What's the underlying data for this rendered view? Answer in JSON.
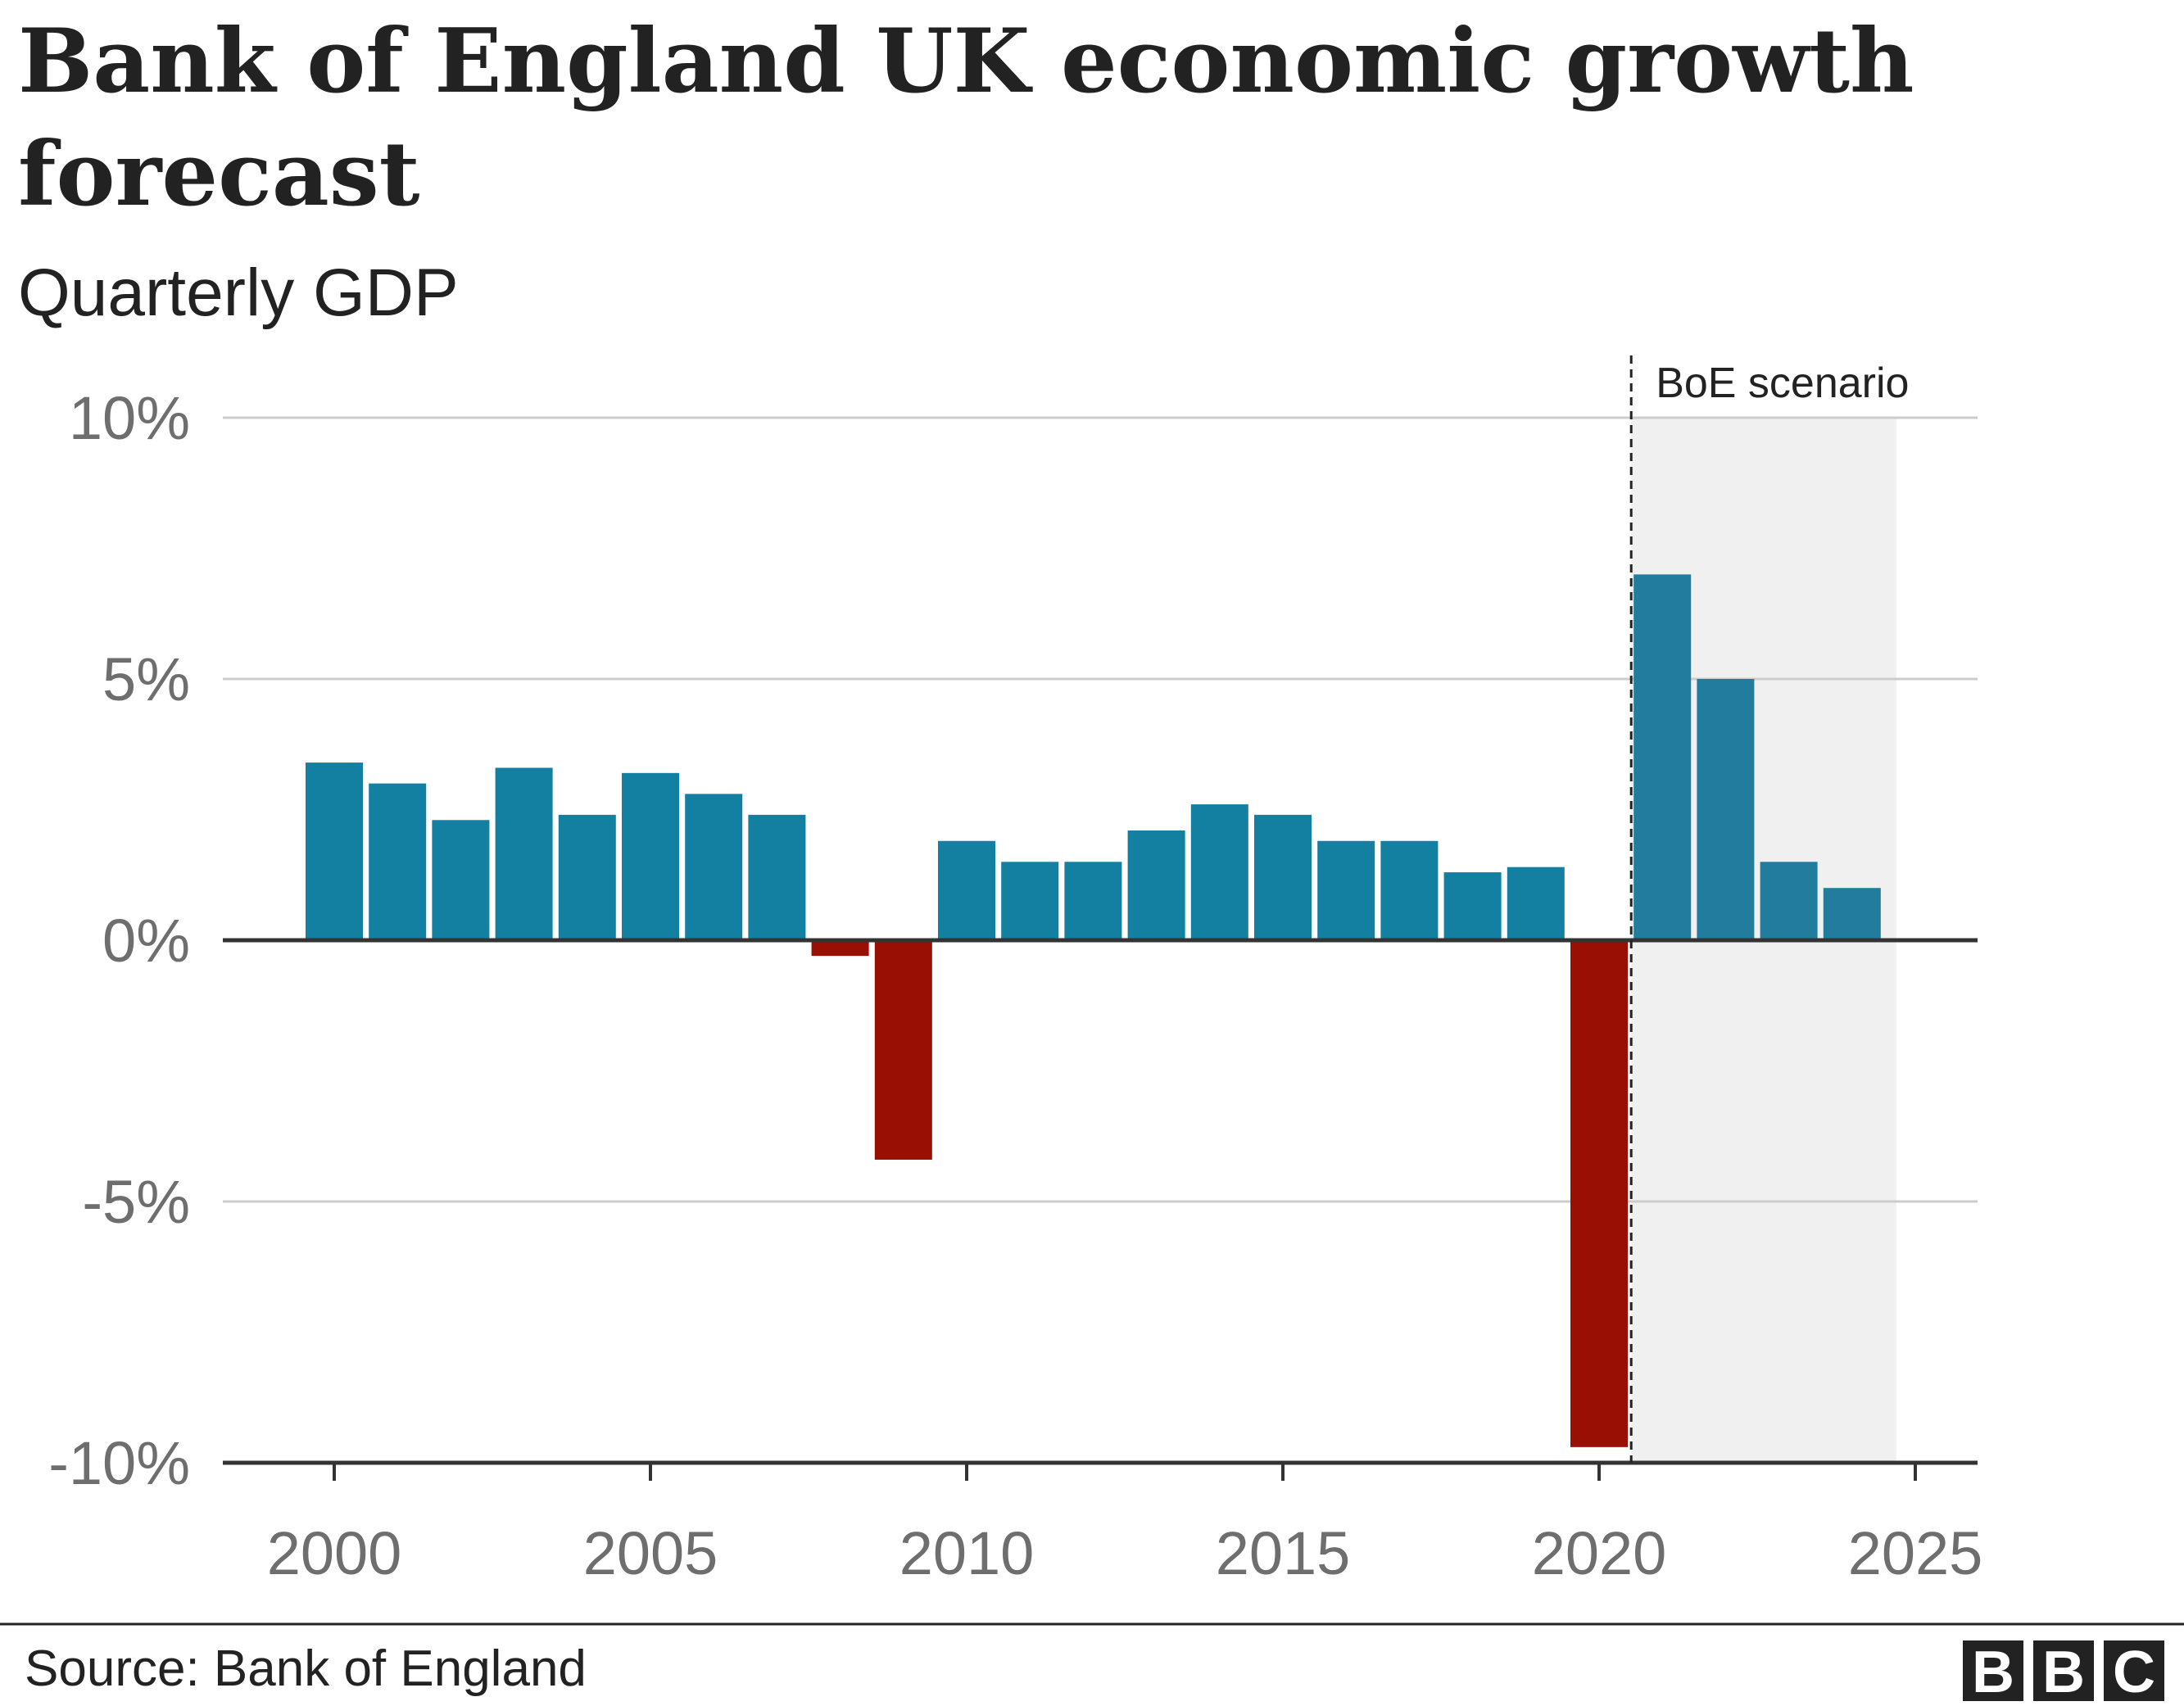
{
  "chart_data": {
    "type": "bar",
    "title_lines": [
      "Bank of England UK economic growth",
      "forecast"
    ],
    "subtitle": "Quarterly GDP",
    "xlabel": "",
    "ylabel": "",
    "x": [
      2000,
      2001,
      2002,
      2003,
      2004,
      2005,
      2006,
      2007,
      2008,
      2009,
      2010,
      2011,
      2012,
      2013,
      2014,
      2015,
      2016,
      2017,
      2018,
      2019,
      2020,
      2021,
      2022,
      2023,
      2024
    ],
    "values": [
      3.4,
      3.0,
      2.3,
      3.3,
      2.4,
      3.2,
      2.8,
      2.4,
      -0.3,
      -4.2,
      1.9,
      1.5,
      1.5,
      2.1,
      2.6,
      2.4,
      1.9,
      1.9,
      1.3,
      1.4,
      -9.7,
      7.0,
      5.0,
      1.5,
      1.0
    ],
    "forecast_from": 2021,
    "ylim": [
      -10,
      10
    ],
    "xlim": [
      1998.5,
      2026
    ],
    "y_ticks": [
      10,
      5,
      0,
      -5,
      -10
    ],
    "y_tick_labels": [
      "10%",
      "5%",
      "0%",
      "-5%",
      "-10%"
    ],
    "x_ticks": [
      2000,
      2005,
      2010,
      2015,
      2020,
      2025
    ],
    "x_tick_labels": [
      "2000",
      "2005",
      "2010",
      "2015",
      "2020",
      "2025"
    ],
    "grid": true,
    "annotation": "BoE scenario",
    "colors": {
      "positive": "#1380A1",
      "forecast": "#217C9E",
      "negative": "#990F04",
      "shade": "#F0F0F0"
    }
  },
  "footer": {
    "source": "Source: Bank of England",
    "logo": [
      "B",
      "B",
      "C"
    ]
  }
}
